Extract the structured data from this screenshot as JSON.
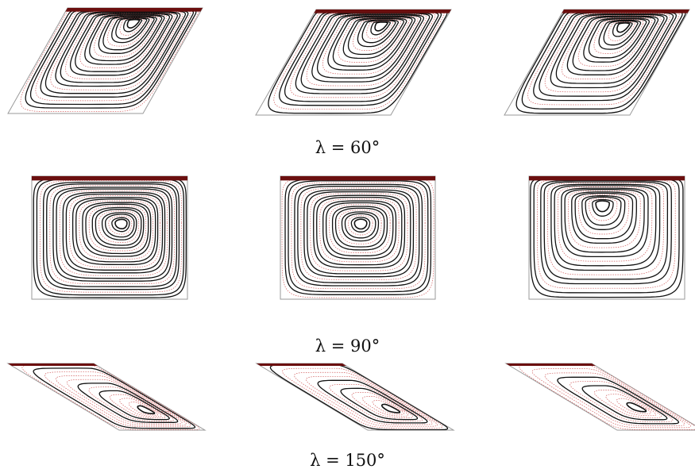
{
  "rows": [
    {
      "caption": "λ = 60°",
      "angle_deg": 60,
      "panels": 3
    },
    {
      "caption": "λ = 90°",
      "angle_deg": 90,
      "panels": 3
    },
    {
      "caption": "λ = 150°",
      "angle_deg": 150,
      "panels": 3
    }
  ],
  "colors": {
    "streamline": "#111111",
    "secondary_streamline": "#d05a5a",
    "lid": "#6b0f0f",
    "frame": "#9a9a9a"
  }
}
